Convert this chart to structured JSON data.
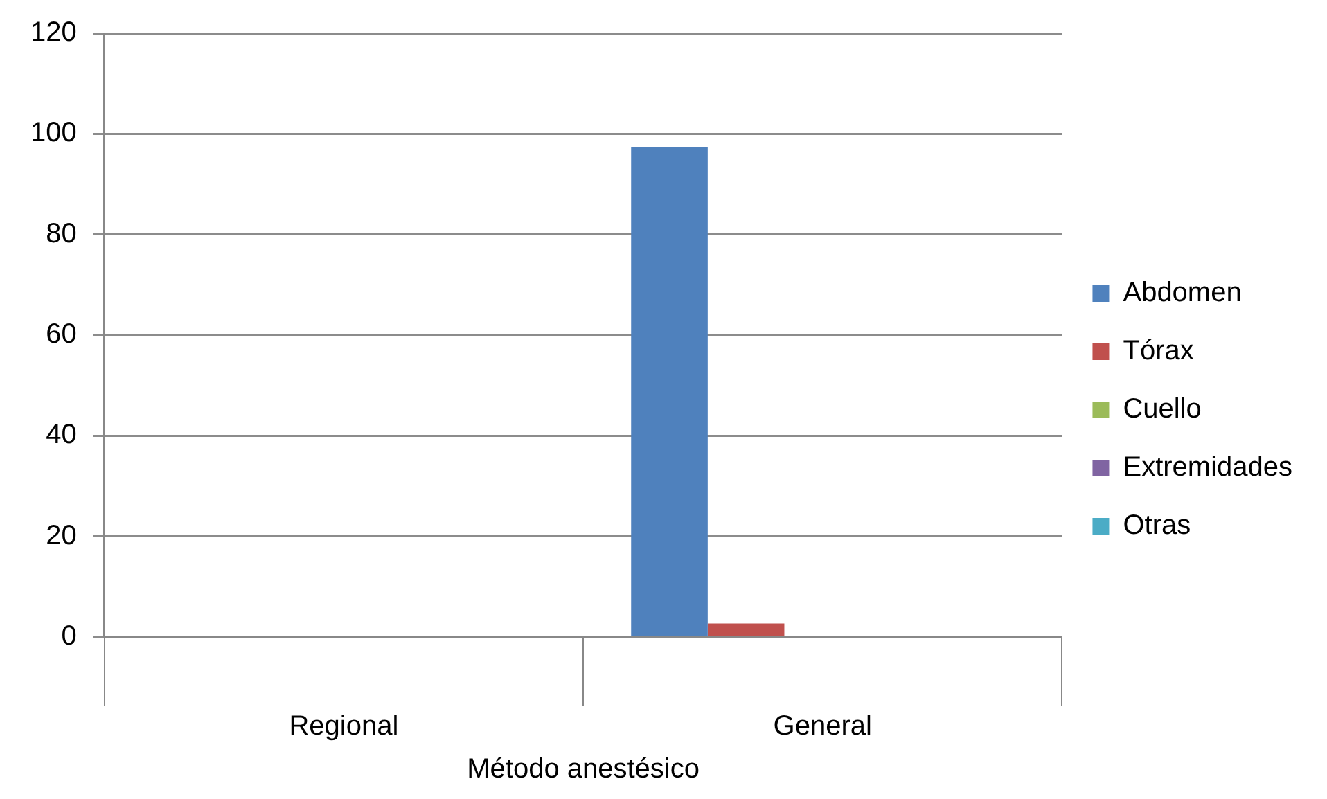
{
  "chart_data": {
    "type": "bar",
    "xlabel": "Método anestésico",
    "categories": [
      "Regional",
      "General"
    ],
    "series": [
      {
        "name": "Abdomen",
        "color": "#4f81bd",
        "values": [
          0,
          97.3
        ]
      },
      {
        "name": "Tórax",
        "color": "#c0504d",
        "values": [
          0,
          2.7
        ]
      },
      {
        "name": "Cuello",
        "color": "#9bbb59",
        "values": [
          0,
          0
        ]
      },
      {
        "name": "Extremidades",
        "color": "#8064a2",
        "values": [
          0,
          0
        ]
      },
      {
        "name": "Otras",
        "color": "#4bacc6",
        "values": [
          0,
          0
        ]
      }
    ],
    "ylim": [
      0,
      120
    ],
    "yticks": [
      0,
      20,
      40,
      60,
      80,
      100,
      120
    ],
    "grid": "y",
    "legend": "right"
  }
}
